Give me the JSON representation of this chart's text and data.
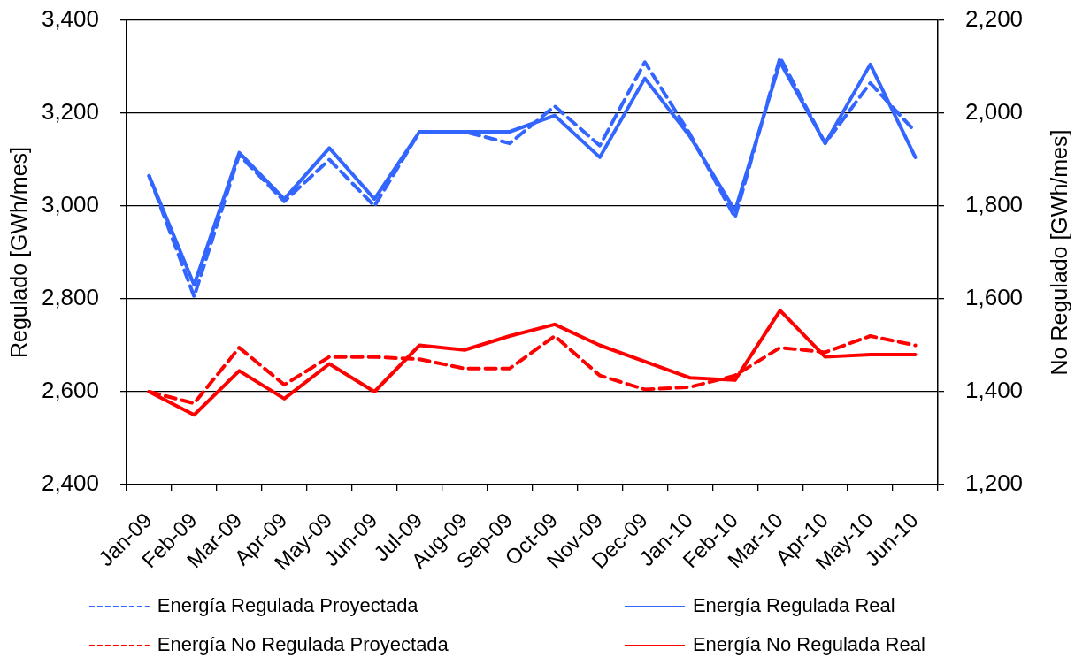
{
  "chart_data": {
    "type": "line",
    "categories": [
      "Jan-09",
      "Feb-09",
      "Mar-09",
      "Apr-09",
      "May-09",
      "Jun-09",
      "Jul-09",
      "Aug-09",
      "Sep-09",
      "Oct-09",
      "Nov-09",
      "Dec-09",
      "Jan-10",
      "Feb-10",
      "Mar-10",
      "Apr-10",
      "May-10",
      "Jun-10"
    ],
    "series": [
      {
        "name": "Energía Regulada Proyectada",
        "color": "#3366ff",
        "line_style": "dashed",
        "values": [
          3065,
          2805,
          3110,
          3010,
          3100,
          3000,
          3160,
          3160,
          3135,
          3215,
          3130,
          3310,
          3155,
          2975,
          3320,
          3135,
          3265,
          3160
        ]
      },
      {
        "name": "Energía Regulada Real",
        "color": "#3366ff",
        "line_style": "solid",
        "values": [
          3065,
          2830,
          3115,
          3015,
          3125,
          3015,
          3160,
          3160,
          3160,
          3195,
          3105,
          3275,
          3150,
          2990,
          3310,
          3135,
          3305,
          3105
        ]
      },
      {
        "name": "Energía No Regulada Proyectada",
        "color": "#ff0000",
        "line_style": "dashed",
        "axis": "y2",
        "values": [
          1400,
          1375,
          1495,
          1415,
          1475,
          1475,
          1470,
          1450,
          1450,
          1520,
          1435,
          1405,
          1410,
          1435,
          1495,
          1485,
          1520,
          1500
        ]
      },
      {
        "name": "Energía No Regulada Real",
        "color": "#ff0000",
        "line_style": "solid",
        "axis": "y2",
        "values": [
          1400,
          1350,
          1445,
          1385,
          1460,
          1400,
          1500,
          1490,
          1520,
          1545,
          1500,
          1465,
          1430,
          1425,
          1575,
          1475,
          1480,
          1480
        ]
      }
    ],
    "ylabel": "Regulado [GWh/mes]",
    "y2label": "No Regulado [GWh/mes]",
    "ylim": [
      2400,
      3400
    ],
    "yticks": [
      {
        "value": 2400,
        "label": "2,400"
      },
      {
        "value": 2600,
        "label": "2,600"
      },
      {
        "value": 2800,
        "label": "2,800"
      },
      {
        "value": 3000,
        "label": "3,000"
      },
      {
        "value": 3200,
        "label": "3,200"
      },
      {
        "value": 3400,
        "label": "3,400"
      }
    ],
    "y2lim": [
      1200,
      2200
    ],
    "y2ticks": [
      {
        "value": 1200,
        "label": "1,200"
      },
      {
        "value": 1400,
        "label": "1,400"
      },
      {
        "value": 1600,
        "label": "1,600"
      },
      {
        "value": 1800,
        "label": "1,800"
      },
      {
        "value": 2000,
        "label": "2,000"
      },
      {
        "value": 2200,
        "label": "2,200"
      }
    ],
    "grid": "y",
    "legend": "bottom"
  }
}
